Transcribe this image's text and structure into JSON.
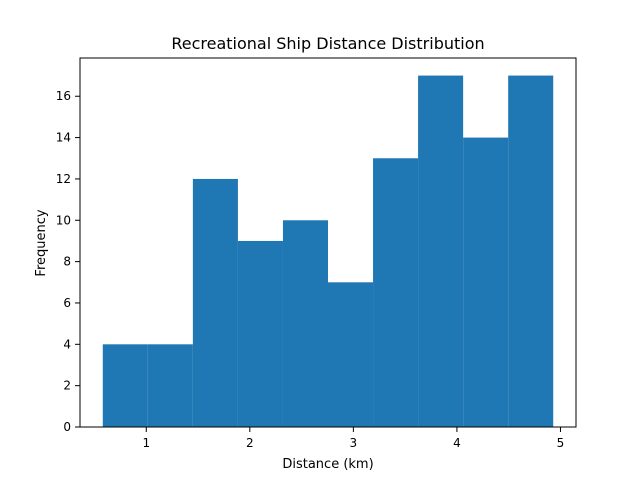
{
  "chart_data": {
    "type": "bar",
    "title": "Recreational Ship Distance Distribution",
    "xlabel": "Distance (km)",
    "ylabel": "Frequency",
    "bin_edges": [
      0.58,
      1.015,
      1.45,
      1.885,
      2.32,
      2.755,
      3.19,
      3.625,
      4.06,
      4.495,
      4.93
    ],
    "values": [
      4,
      4,
      12,
      9,
      10,
      7,
      13,
      17,
      14,
      17
    ],
    "xlim": [
      0.36,
      5.15
    ],
    "ylim": [
      0,
      17.85
    ],
    "xticks": [
      1,
      2,
      3,
      4,
      5
    ],
    "yticks": [
      0,
      2,
      4,
      6,
      8,
      10,
      12,
      14,
      16
    ],
    "bar_color": "#1f77b4",
    "grid": false
  }
}
